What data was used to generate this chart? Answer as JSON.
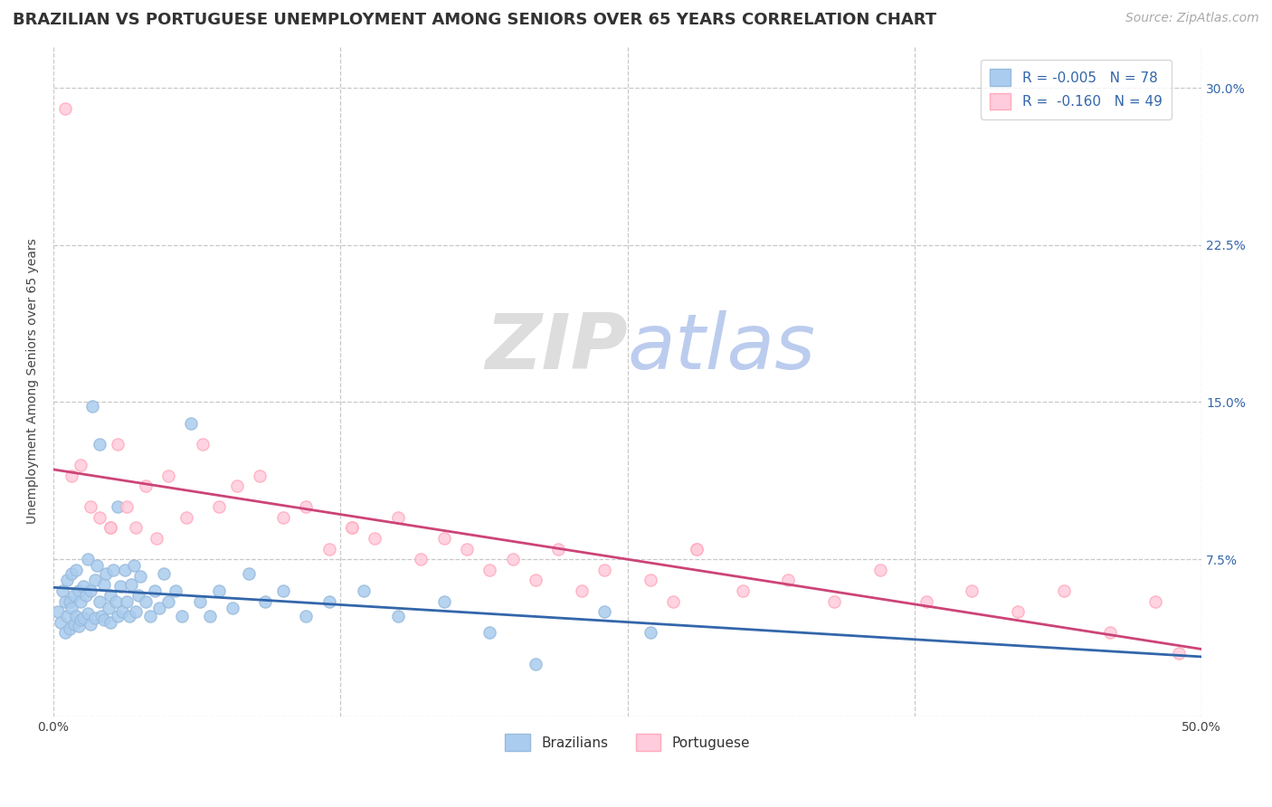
{
  "title": "BRAZILIAN VS PORTUGUESE UNEMPLOYMENT AMONG SENIORS OVER 65 YEARS CORRELATION CHART",
  "source": "Source: ZipAtlas.com",
  "ylabel": "Unemployment Among Seniors over 65 years",
  "xlim": [
    0.0,
    0.5
  ],
  "ylim": [
    0.0,
    0.32
  ],
  "ytick_positions": [
    0.075,
    0.15,
    0.225,
    0.3
  ],
  "ytick_labels": [
    "7.5%",
    "15.0%",
    "22.5%",
    "30.0%"
  ],
  "title_fontsize": 13,
  "source_fontsize": 10,
  "label_fontsize": 10,
  "tick_fontsize": 10,
  "legend_fontsize": 11,
  "background_color": "#ffffff",
  "plot_bg_color": "#ffffff",
  "grid_color": "#c8c8c8",
  "blue_color": "#99bbdd",
  "pink_color": "#ffaabb",
  "blue_fill_color": "#aaccee",
  "pink_fill_color": "#ffccdd",
  "blue_line_color": "#3366aa",
  "pink_line_color": "#cc4477",
  "watermark_color": "#dddddd",
  "R_brazilian": -0.005,
  "N_brazilian": 78,
  "R_portuguese": -0.16,
  "N_portuguese": 49,
  "brazilian_x": [
    0.002,
    0.003,
    0.004,
    0.005,
    0.005,
    0.006,
    0.006,
    0.007,
    0.007,
    0.008,
    0.008,
    0.009,
    0.009,
    0.01,
    0.01,
    0.011,
    0.011,
    0.012,
    0.012,
    0.013,
    0.013,
    0.014,
    0.015,
    0.015,
    0.016,
    0.016,
    0.017,
    0.018,
    0.018,
    0.019,
    0.02,
    0.02,
    0.021,
    0.022,
    0.022,
    0.023,
    0.024,
    0.025,
    0.025,
    0.026,
    0.027,
    0.028,
    0.028,
    0.029,
    0.03,
    0.031,
    0.032,
    0.033,
    0.034,
    0.035,
    0.036,
    0.037,
    0.038,
    0.04,
    0.042,
    0.044,
    0.046,
    0.048,
    0.05,
    0.053,
    0.056,
    0.06,
    0.064,
    0.068,
    0.072,
    0.078,
    0.085,
    0.092,
    0.1,
    0.11,
    0.12,
    0.135,
    0.15,
    0.17,
    0.19,
    0.21,
    0.24,
    0.26
  ],
  "brazilian_y": [
    0.05,
    0.045,
    0.06,
    0.055,
    0.04,
    0.065,
    0.048,
    0.055,
    0.042,
    0.068,
    0.052,
    0.058,
    0.044,
    0.07,
    0.048,
    0.06,
    0.043,
    0.055,
    0.046,
    0.062,
    0.047,
    0.058,
    0.075,
    0.049,
    0.06,
    0.044,
    0.148,
    0.065,
    0.047,
    0.072,
    0.055,
    0.13,
    0.048,
    0.063,
    0.046,
    0.068,
    0.052,
    0.058,
    0.045,
    0.07,
    0.055,
    0.1,
    0.048,
    0.062,
    0.05,
    0.07,
    0.055,
    0.048,
    0.063,
    0.072,
    0.05,
    0.058,
    0.067,
    0.055,
    0.048,
    0.06,
    0.052,
    0.068,
    0.055,
    0.06,
    0.048,
    0.14,
    0.055,
    0.048,
    0.06,
    0.052,
    0.068,
    0.055,
    0.06,
    0.048,
    0.055,
    0.06,
    0.048,
    0.055,
    0.04,
    0.025,
    0.05,
    0.04
  ],
  "portuguese_x": [
    0.005,
    0.008,
    0.012,
    0.016,
    0.02,
    0.025,
    0.028,
    0.032,
    0.036,
    0.04,
    0.045,
    0.05,
    0.058,
    0.065,
    0.072,
    0.08,
    0.09,
    0.1,
    0.11,
    0.12,
    0.13,
    0.14,
    0.15,
    0.16,
    0.17,
    0.18,
    0.19,
    0.2,
    0.21,
    0.22,
    0.23,
    0.24,
    0.26,
    0.27,
    0.28,
    0.3,
    0.32,
    0.34,
    0.36,
    0.38,
    0.4,
    0.42,
    0.44,
    0.46,
    0.48,
    0.49,
    0.025,
    0.13,
    0.28
  ],
  "portuguese_y": [
    0.29,
    0.115,
    0.12,
    0.1,
    0.095,
    0.09,
    0.13,
    0.1,
    0.09,
    0.11,
    0.085,
    0.115,
    0.095,
    0.13,
    0.1,
    0.11,
    0.115,
    0.095,
    0.1,
    0.08,
    0.09,
    0.085,
    0.095,
    0.075,
    0.085,
    0.08,
    0.07,
    0.075,
    0.065,
    0.08,
    0.06,
    0.07,
    0.065,
    0.055,
    0.08,
    0.06,
    0.065,
    0.055,
    0.07,
    0.055,
    0.06,
    0.05,
    0.06,
    0.04,
    0.055,
    0.03,
    0.09,
    0.09,
    0.08
  ]
}
